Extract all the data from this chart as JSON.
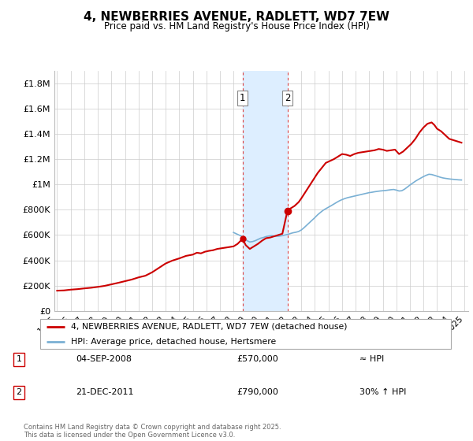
{
  "title": "4, NEWBERRIES AVENUE, RADLETT, WD7 7EW",
  "subtitle": "Price paid vs. HM Land Registry's House Price Index (HPI)",
  "legend_line1": "4, NEWBERRIES AVENUE, RADLETT, WD7 7EW (detached house)",
  "legend_line2": "HPI: Average price, detached house, Hertsmere",
  "annotation1_label": "1",
  "annotation1_date": "04-SEP-2008",
  "annotation1_price": "£570,000",
  "annotation1_hpi": "≈ HPI",
  "annotation2_label": "2",
  "annotation2_date": "21-DEC-2011",
  "annotation2_price": "£790,000",
  "annotation2_hpi": "30% ↑ HPI",
  "copyright": "Contains HM Land Registry data © Crown copyright and database right 2025.\nThis data is licensed under the Open Government Licence v3.0.",
  "house_color": "#cc0000",
  "hpi_color": "#7ab0d4",
  "highlight_color": "#ddeeff",
  "vline_color": "#dd4444",
  "ylim": [
    0,
    1900000
  ],
  "yticks": [
    0,
    200000,
    400000,
    600000,
    800000,
    1000000,
    1200000,
    1400000,
    1600000,
    1800000
  ],
  "ytick_labels": [
    "£0",
    "£200K",
    "£400K",
    "£600K",
    "£800K",
    "£1M",
    "£1.2M",
    "£1.4M",
    "£1.6M",
    "£1.8M"
  ],
  "house_prices": [
    [
      1995.0,
      160000
    ],
    [
      1995.5,
      162000
    ],
    [
      1996.0,
      168000
    ],
    [
      1996.5,
      172000
    ],
    [
      1997.0,
      178000
    ],
    [
      1997.5,
      183000
    ],
    [
      1998.0,
      190000
    ],
    [
      1998.5,
      198000
    ],
    [
      1999.0,
      210000
    ],
    [
      1999.5,
      222000
    ],
    [
      2000.0,
      235000
    ],
    [
      2000.5,
      248000
    ],
    [
      2001.0,
      265000
    ],
    [
      2001.5,
      278000
    ],
    [
      2002.0,
      305000
    ],
    [
      2002.5,
      340000
    ],
    [
      2003.0,
      375000
    ],
    [
      2003.5,
      398000
    ],
    [
      2004.0,
      415000
    ],
    [
      2004.5,
      435000
    ],
    [
      2005.0,
      445000
    ],
    [
      2005.3,
      460000
    ],
    [
      2005.6,
      455000
    ],
    [
      2005.9,
      468000
    ],
    [
      2006.2,
      475000
    ],
    [
      2006.5,
      480000
    ],
    [
      2006.8,
      490000
    ],
    [
      2007.1,
      495000
    ],
    [
      2007.4,
      500000
    ],
    [
      2007.7,
      505000
    ],
    [
      2008.0,
      510000
    ],
    [
      2008.3,
      530000
    ],
    [
      2008.67,
      570000
    ],
    [
      2008.9,
      520000
    ],
    [
      2009.2,
      490000
    ],
    [
      2009.5,
      510000
    ],
    [
      2009.8,
      530000
    ],
    [
      2010.1,
      555000
    ],
    [
      2010.4,
      575000
    ],
    [
      2010.7,
      580000
    ],
    [
      2011.0,
      590000
    ],
    [
      2011.3,
      600000
    ],
    [
      2011.6,
      610000
    ],
    [
      2011.97,
      790000
    ],
    [
      2012.2,
      810000
    ],
    [
      2012.5,
      830000
    ],
    [
      2012.8,
      860000
    ],
    [
      2013.0,
      890000
    ],
    [
      2013.3,
      940000
    ],
    [
      2013.6,
      990000
    ],
    [
      2013.9,
      1040000
    ],
    [
      2014.2,
      1090000
    ],
    [
      2014.5,
      1130000
    ],
    [
      2014.8,
      1170000
    ],
    [
      2015.1,
      1185000
    ],
    [
      2015.4,
      1200000
    ],
    [
      2015.7,
      1220000
    ],
    [
      2016.0,
      1240000
    ],
    [
      2016.3,
      1235000
    ],
    [
      2016.6,
      1225000
    ],
    [
      2016.9,
      1240000
    ],
    [
      2017.2,
      1250000
    ],
    [
      2017.5,
      1255000
    ],
    [
      2017.8,
      1260000
    ],
    [
      2018.1,
      1265000
    ],
    [
      2018.4,
      1270000
    ],
    [
      2018.7,
      1280000
    ],
    [
      2019.0,
      1275000
    ],
    [
      2019.3,
      1265000
    ],
    [
      2019.6,
      1270000
    ],
    [
      2019.9,
      1275000
    ],
    [
      2020.2,
      1240000
    ],
    [
      2020.5,
      1260000
    ],
    [
      2020.8,
      1290000
    ],
    [
      2021.1,
      1320000
    ],
    [
      2021.4,
      1360000
    ],
    [
      2021.7,
      1410000
    ],
    [
      2022.0,
      1450000
    ],
    [
      2022.3,
      1480000
    ],
    [
      2022.6,
      1490000
    ],
    [
      2022.8,
      1470000
    ],
    [
      2023.0,
      1440000
    ],
    [
      2023.3,
      1420000
    ],
    [
      2023.6,
      1390000
    ],
    [
      2023.9,
      1360000
    ],
    [
      2024.2,
      1350000
    ],
    [
      2024.5,
      1340000
    ],
    [
      2024.8,
      1330000
    ]
  ],
  "hpi_prices": [
    [
      2008.0,
      620000
    ],
    [
      2008.2,
      610000
    ],
    [
      2008.4,
      600000
    ],
    [
      2008.6,
      590000
    ],
    [
      2008.8,
      575000
    ],
    [
      2009.0,
      555000
    ],
    [
      2009.2,
      545000
    ],
    [
      2009.4,
      548000
    ],
    [
      2009.6,
      555000
    ],
    [
      2009.8,
      565000
    ],
    [
      2010.0,
      575000
    ],
    [
      2010.2,
      580000
    ],
    [
      2010.4,
      588000
    ],
    [
      2010.6,
      592000
    ],
    [
      2010.8,
      595000
    ],
    [
      2011.0,
      592000
    ],
    [
      2011.2,
      590000
    ],
    [
      2011.4,
      592000
    ],
    [
      2011.6,
      595000
    ],
    [
      2011.8,
      600000
    ],
    [
      2012.0,
      605000
    ],
    [
      2012.2,
      612000
    ],
    [
      2012.4,
      618000
    ],
    [
      2012.6,
      622000
    ],
    [
      2012.8,
      628000
    ],
    [
      2013.0,
      640000
    ],
    [
      2013.2,
      658000
    ],
    [
      2013.4,
      678000
    ],
    [
      2013.6,
      698000
    ],
    [
      2013.8,
      718000
    ],
    [
      2014.0,
      738000
    ],
    [
      2014.2,
      760000
    ],
    [
      2014.4,
      778000
    ],
    [
      2014.6,
      795000
    ],
    [
      2014.8,
      808000
    ],
    [
      2015.0,
      820000
    ],
    [
      2015.2,
      832000
    ],
    [
      2015.4,
      845000
    ],
    [
      2015.6,
      858000
    ],
    [
      2015.8,
      870000
    ],
    [
      2016.0,
      880000
    ],
    [
      2016.2,
      888000
    ],
    [
      2016.4,
      895000
    ],
    [
      2016.6,
      900000
    ],
    [
      2016.8,
      905000
    ],
    [
      2017.0,
      910000
    ],
    [
      2017.2,
      915000
    ],
    [
      2017.4,
      920000
    ],
    [
      2017.6,
      925000
    ],
    [
      2017.8,
      930000
    ],
    [
      2018.0,
      935000
    ],
    [
      2018.2,
      938000
    ],
    [
      2018.4,
      942000
    ],
    [
      2018.6,
      945000
    ],
    [
      2018.8,
      948000
    ],
    [
      2019.0,
      950000
    ],
    [
      2019.2,
      952000
    ],
    [
      2019.4,
      955000
    ],
    [
      2019.6,
      958000
    ],
    [
      2019.8,
      960000
    ],
    [
      2020.0,
      955000
    ],
    [
      2020.2,
      948000
    ],
    [
      2020.4,
      950000
    ],
    [
      2020.6,
      962000
    ],
    [
      2020.8,
      978000
    ],
    [
      2021.0,
      995000
    ],
    [
      2021.2,
      1010000
    ],
    [
      2021.4,
      1025000
    ],
    [
      2021.6,
      1038000
    ],
    [
      2021.8,
      1050000
    ],
    [
      2022.0,
      1062000
    ],
    [
      2022.2,
      1072000
    ],
    [
      2022.4,
      1080000
    ],
    [
      2022.6,
      1078000
    ],
    [
      2022.8,
      1072000
    ],
    [
      2023.0,
      1065000
    ],
    [
      2023.2,
      1058000
    ],
    [
      2023.4,
      1052000
    ],
    [
      2023.6,
      1048000
    ],
    [
      2023.8,
      1045000
    ],
    [
      2024.0,
      1042000
    ],
    [
      2024.2,
      1040000
    ],
    [
      2024.4,
      1038000
    ],
    [
      2024.6,
      1036000
    ],
    [
      2024.8,
      1035000
    ]
  ],
  "sale1_x": 2008.67,
  "sale1_y": 570000,
  "sale2_x": 2011.97,
  "sale2_y": 790000,
  "highlight_x1": 2008.67,
  "highlight_x2": 2011.97,
  "xmin": 1994.8,
  "xmax": 2025.3
}
